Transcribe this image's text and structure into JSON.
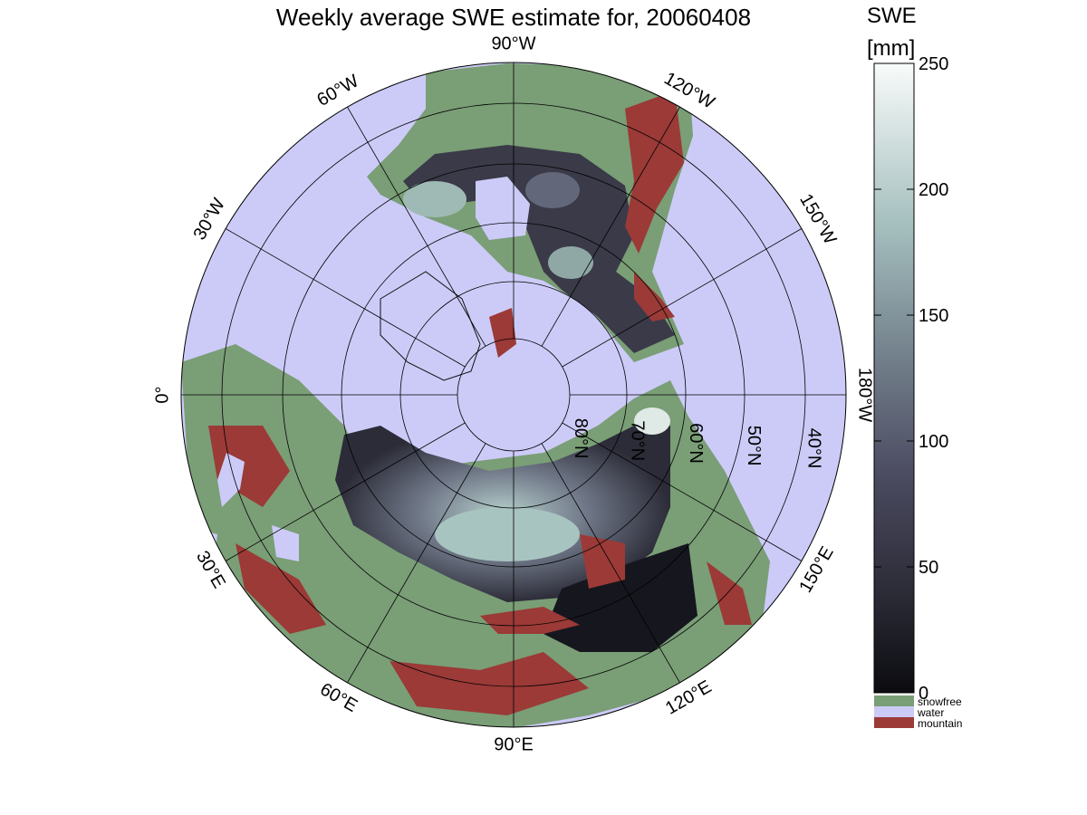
{
  "title": "Weekly average SWE estimate for, 20060408",
  "colorbar": {
    "label_line1": "SWE",
    "label_line2": "[mm]",
    "ticks": [
      "0",
      "50",
      "100",
      "150",
      "200",
      "250"
    ],
    "range": [
      0,
      250
    ],
    "categories": [
      {
        "label": "snowfree",
        "color": "#7a9e76"
      },
      {
        "label": "water",
        "color": "#cccbf8"
      },
      {
        "label": "mountain",
        "color": "#9b3a37"
      }
    ]
  },
  "map": {
    "projection": "north polar stereographic",
    "meridian_labels": [
      "90°W",
      "120°W",
      "150°W",
      "180°W",
      "150°E",
      "120°E",
      "90°E",
      "60°E",
      "30°E",
      "0°",
      "30°W",
      "60°W"
    ],
    "parallel_labels": [
      "80°N",
      "70°N",
      "60°N",
      "50°N",
      "40°N"
    ]
  },
  "colors": {
    "water": "#cccbf8",
    "snowfree": "#7a9e76",
    "mountain": "#9b3a37",
    "snow_low": "#0d0d14",
    "snow_high": "#f6faf8"
  }
}
